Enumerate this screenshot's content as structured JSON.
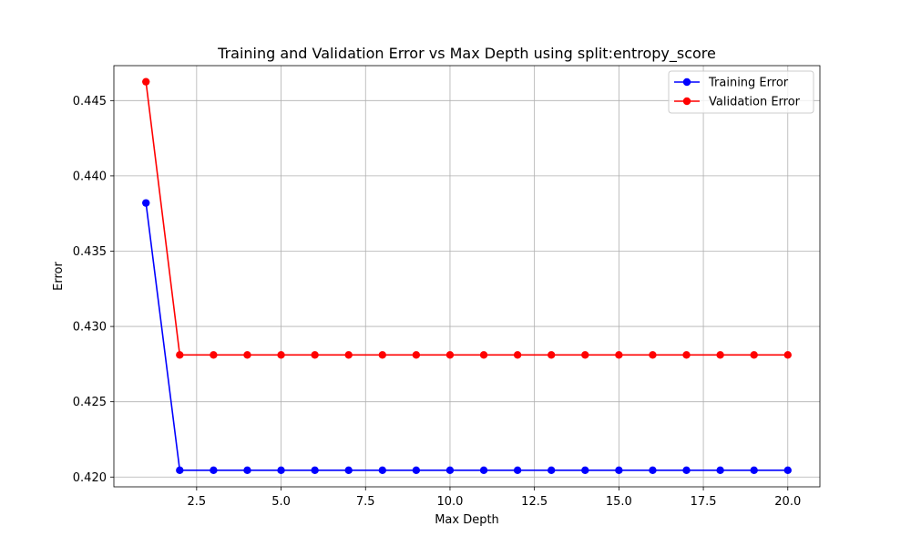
{
  "chart_data": {
    "type": "line",
    "title": "Training and Validation Error vs Max Depth using split:entropy_score",
    "xlabel": "Max Depth",
    "ylabel": "Error",
    "xlim": [
      0.05,
      20.95
    ],
    "ylim": [
      0.41935,
      0.44732
    ],
    "x_ticks": [
      2.5,
      5.0,
      7.5,
      10.0,
      12.5,
      15.0,
      17.5,
      20.0
    ],
    "x_tick_labels": [
      "2.5",
      "5.0",
      "7.5",
      "10.0",
      "12.5",
      "15.0",
      "17.5",
      "20.0"
    ],
    "y_ticks": [
      0.42,
      0.425,
      0.43,
      0.435,
      0.44,
      0.445
    ],
    "y_tick_labels": [
      "0.420",
      "0.425",
      "0.430",
      "0.435",
      "0.440",
      "0.445"
    ],
    "grid": true,
    "legend_position": "top-right",
    "x": [
      1,
      2,
      3,
      4,
      5,
      6,
      7,
      8,
      9,
      10,
      11,
      12,
      13,
      14,
      15,
      16,
      17,
      18,
      19,
      20
    ],
    "series": [
      {
        "name": "Training Error",
        "color": "#0000ff",
        "values": [
          0.4382,
          0.42045,
          0.42045,
          0.42045,
          0.42045,
          0.42045,
          0.42045,
          0.42045,
          0.42045,
          0.42045,
          0.42045,
          0.42045,
          0.42045,
          0.42045,
          0.42045,
          0.42045,
          0.42045,
          0.42045,
          0.42045,
          0.42045
        ]
      },
      {
        "name": "Validation Error",
        "color": "#ff0000",
        "values": [
          0.44625,
          0.42811,
          0.42811,
          0.42811,
          0.42811,
          0.42811,
          0.42811,
          0.42811,
          0.42811,
          0.42811,
          0.42811,
          0.42811,
          0.42811,
          0.42811,
          0.42811,
          0.42811,
          0.42811,
          0.42811,
          0.42811,
          0.42811
        ]
      }
    ]
  }
}
